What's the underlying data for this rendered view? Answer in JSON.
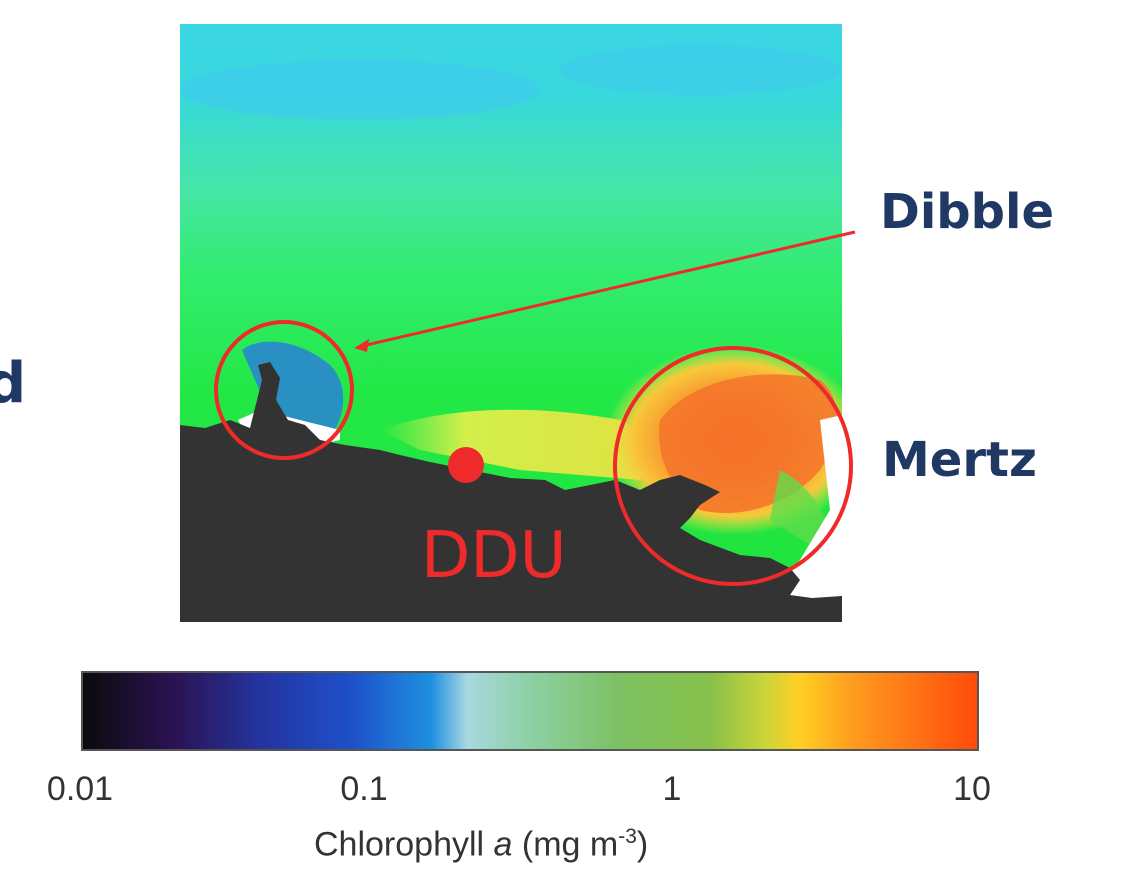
{
  "map": {
    "sites": {
      "dibble": "Dibble",
      "mertz": "Mertz",
      "ddu": "DDU"
    },
    "cut_off_text": "d"
  },
  "colorbar": {
    "ticks": [
      "0.01",
      "0.1",
      "1",
      "10"
    ],
    "tick_values": [
      0.01,
      0.1,
      1,
      10
    ],
    "scale": "log",
    "title_pre": "Chlorophyll ",
    "title_var": "a",
    "title_unit": " (mg m",
    "title_exp": "-3",
    "title_post": ")",
    "stops": [
      "#0a0a0a",
      "#2a1250",
      "#2434a0",
      "#1e50c8",
      "#1e90e0",
      "#a8d8e0",
      "#7ccc7c",
      "#7cc062",
      "#b8d23a",
      "#ffd024",
      "#ff8c1e",
      "#ff4a0c"
    ]
  },
  "colors": {
    "land": "#333333",
    "annotation": "#ee2a2a",
    "label": "#1f3864"
  }
}
